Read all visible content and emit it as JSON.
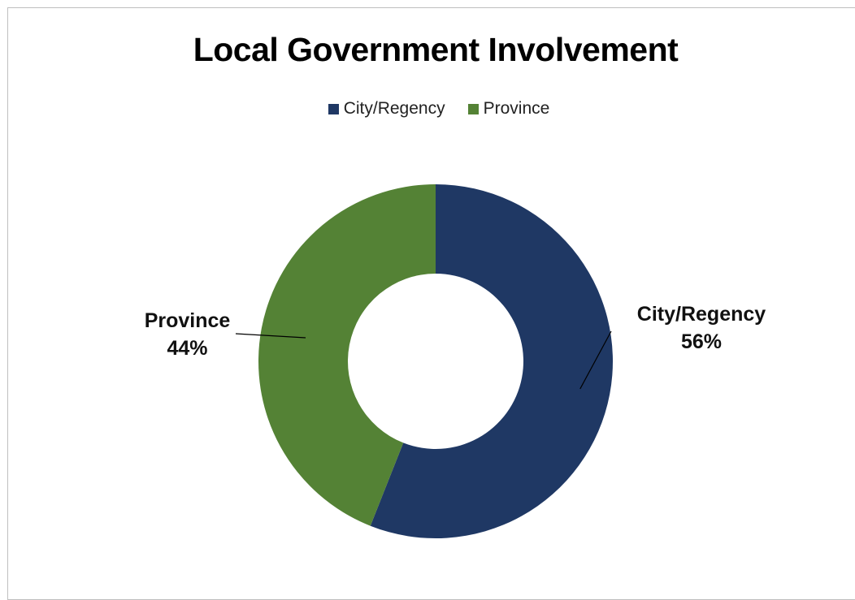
{
  "chart_data": {
    "type": "pie",
    "subtype": "donut",
    "title": "Local Government Involvement",
    "categories": [
      "City/Regency",
      "Province"
    ],
    "values": [
      56,
      44
    ],
    "value_labels": [
      "56%",
      "44%"
    ],
    "colors": [
      "#1f3864",
      "#548235"
    ],
    "legend": {
      "position": "top",
      "entries": [
        "City/Regency",
        "Province"
      ]
    }
  }
}
